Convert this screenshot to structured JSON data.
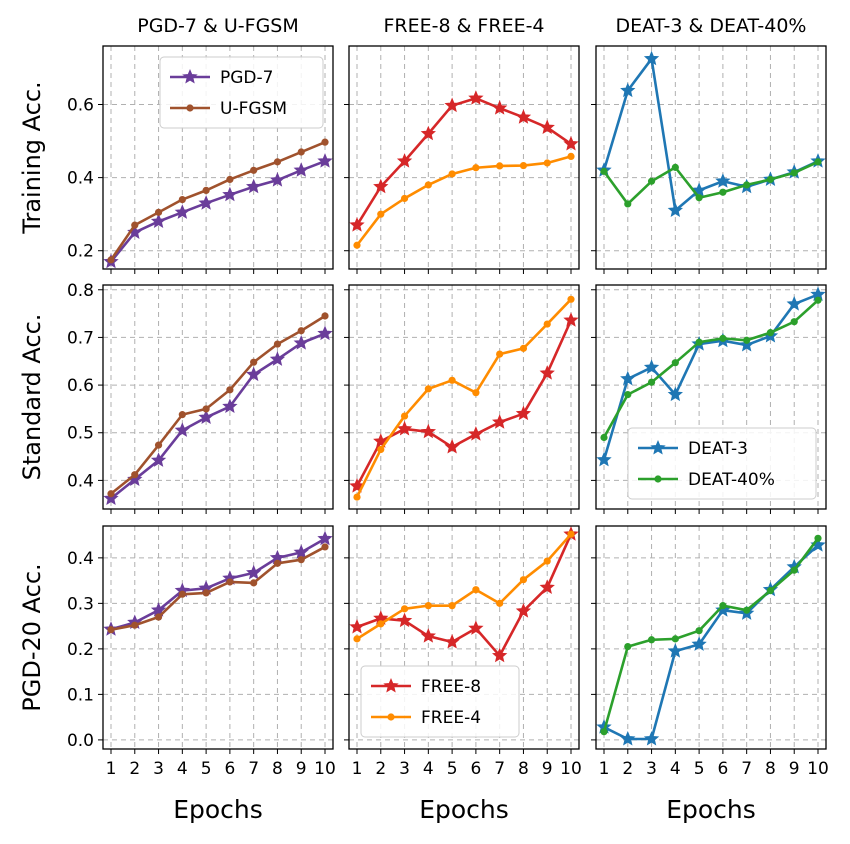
{
  "colors": {
    "purple": "#6a3d9a",
    "brown": "#a0522d",
    "red": "#d62728",
    "orange": "#ff8c00",
    "blue": "#1f77b4",
    "green": "#2ca02c",
    "grid": "#b0b0b0"
  },
  "chart_data": {
    "type": "line",
    "grid": true,
    "x_ticks": [
      "1",
      "2",
      "3",
      "4",
      "5",
      "6",
      "7",
      "8",
      "9",
      "10"
    ],
    "xlabel": "Epochs",
    "col_titles": [
      "PGD-7 & U-FGSM",
      "FREE-8 & FREE-4",
      "DEAT-3 & DEAT-40%"
    ],
    "rows": [
      {
        "ylabel": "Training Acc.",
        "ylim": [
          0.15,
          0.76
        ],
        "yticks": [
          0.2,
          0.4,
          0.6
        ],
        "ytick_labels": [
          "0.2",
          "0.4",
          "0.6"
        ]
      },
      {
        "ylabel": "Standard Acc.",
        "ylim": [
          0.34,
          0.81
        ],
        "yticks": [
          0.4,
          0.5,
          0.6,
          0.7,
          0.8
        ],
        "ytick_labels": [
          "0.4",
          "0.5",
          "0.6",
          "0.7",
          "0.8"
        ]
      },
      {
        "ylabel": "PGD-20 Acc.",
        "ylim": [
          -0.02,
          0.47
        ],
        "yticks": [
          0.0,
          0.1,
          0.2,
          0.3,
          0.4
        ],
        "ytick_labels": [
          "0.0",
          "0.1",
          "0.2",
          "0.3",
          "0.4"
        ]
      }
    ],
    "panels": [
      {
        "row": 0,
        "col": 0,
        "legend": "top-right",
        "series": [
          {
            "name": "PGD-7",
            "color_key": "purple",
            "marker": "star",
            "values": [
              0.17,
              0.25,
              0.28,
              0.305,
              0.33,
              0.353,
              0.375,
              0.393,
              0.42,
              0.445
            ]
          },
          {
            "name": "U-FGSM",
            "color_key": "brown",
            "marker": "circle",
            "values": [
              0.175,
              0.27,
              0.305,
              0.34,
              0.365,
              0.395,
              0.42,
              0.443,
              0.47,
              0.497
            ]
          }
        ]
      },
      {
        "row": 0,
        "col": 1,
        "legend": "",
        "series": [
          {
            "name": "",
            "color_key": "red",
            "marker": "star",
            "values": [
              0.27,
              0.375,
              0.445,
              0.52,
              0.597,
              0.617,
              0.59,
              0.565,
              0.537,
              0.492
            ]
          },
          {
            "name": "",
            "color_key": "orange",
            "marker": "circle",
            "values": [
              0.215,
              0.3,
              0.343,
              0.38,
              0.41,
              0.427,
              0.432,
              0.433,
              0.44,
              0.458
            ]
          }
        ]
      },
      {
        "row": 0,
        "col": 2,
        "legend": "",
        "series": [
          {
            "name": "",
            "color_key": "blue",
            "marker": "star",
            "values": [
              0.42,
              0.638,
              0.725,
              0.31,
              0.365,
              0.39,
              0.375,
              0.395,
              0.415,
              0.445
            ]
          },
          {
            "name": "",
            "color_key": "green",
            "marker": "circle",
            "values": [
              0.417,
              0.328,
              0.39,
              0.428,
              0.345,
              0.36,
              0.38,
              0.395,
              0.413,
              0.443
            ]
          }
        ]
      },
      {
        "row": 1,
        "col": 0,
        "legend": "",
        "series": [
          {
            "name": "",
            "color_key": "purple",
            "marker": "star",
            "values": [
              0.362,
              0.402,
              0.442,
              0.505,
              0.532,
              0.555,
              0.622,
              0.654,
              0.688,
              0.708
            ]
          },
          {
            "name": "",
            "color_key": "brown",
            "marker": "circle",
            "values": [
              0.372,
              0.412,
              0.474,
              0.538,
              0.55,
              0.59,
              0.648,
              0.686,
              0.714,
              0.745
            ]
          }
        ]
      },
      {
        "row": 1,
        "col": 1,
        "legend": "",
        "series": [
          {
            "name": "",
            "color_key": "red",
            "marker": "star",
            "values": [
              0.388,
              0.482,
              0.508,
              0.502,
              0.47,
              0.497,
              0.522,
              0.54,
              0.625,
              0.736
            ]
          },
          {
            "name": "",
            "color_key": "orange",
            "marker": "circle",
            "values": [
              0.365,
              0.465,
              0.535,
              0.592,
              0.61,
              0.584,
              0.665,
              0.677,
              0.728,
              0.78
            ]
          }
        ]
      },
      {
        "row": 1,
        "col": 2,
        "legend": "bottom-right",
        "series": [
          {
            "name": "DEAT-3",
            "color_key": "blue",
            "marker": "star",
            "values": [
              0.443,
              0.613,
              0.637,
              0.58,
              0.686,
              0.693,
              0.684,
              0.703,
              0.77,
              0.79
            ]
          },
          {
            "name": "DEAT-40%",
            "color_key": "green",
            "marker": "circle",
            "values": [
              0.49,
              0.58,
              0.606,
              0.647,
              0.69,
              0.698,
              0.694,
              0.71,
              0.733,
              0.778
            ]
          }
        ]
      },
      {
        "row": 2,
        "col": 0,
        "legend": "",
        "series": [
          {
            "name": "",
            "color_key": "purple",
            "marker": "star",
            "values": [
              0.243,
              0.258,
              0.285,
              0.328,
              0.333,
              0.355,
              0.367,
              0.4,
              0.412,
              0.442
            ]
          },
          {
            "name": "",
            "color_key": "brown",
            "marker": "circle",
            "values": [
              0.242,
              0.252,
              0.27,
              0.32,
              0.323,
              0.347,
              0.345,
              0.388,
              0.396,
              0.424
            ]
          }
        ]
      },
      {
        "row": 2,
        "col": 1,
        "legend": "bottom-center",
        "series": [
          {
            "name": "FREE-8",
            "color_key": "red",
            "marker": "star",
            "values": [
              0.248,
              0.267,
              0.262,
              0.228,
              0.215,
              0.245,
              0.185,
              0.283,
              0.335,
              0.452
            ]
          },
          {
            "name": "FREE-4",
            "color_key": "orange",
            "marker": "circle",
            "values": [
              0.222,
              0.255,
              0.288,
              0.295,
              0.295,
              0.33,
              0.3,
              0.352,
              0.393,
              0.452
            ]
          }
        ]
      },
      {
        "row": 2,
        "col": 2,
        "legend": "",
        "series": [
          {
            "name": "",
            "color_key": "blue",
            "marker": "star",
            "values": [
              0.028,
              0.002,
              0.002,
              0.195,
              0.21,
              0.285,
              0.278,
              0.33,
              0.38,
              0.428
            ]
          },
          {
            "name": "",
            "color_key": "green",
            "marker": "circle",
            "values": [
              0.018,
              0.205,
              0.22,
              0.222,
              0.24,
              0.295,
              0.285,
              0.328,
              0.373,
              0.443
            ]
          }
        ]
      }
    ]
  }
}
